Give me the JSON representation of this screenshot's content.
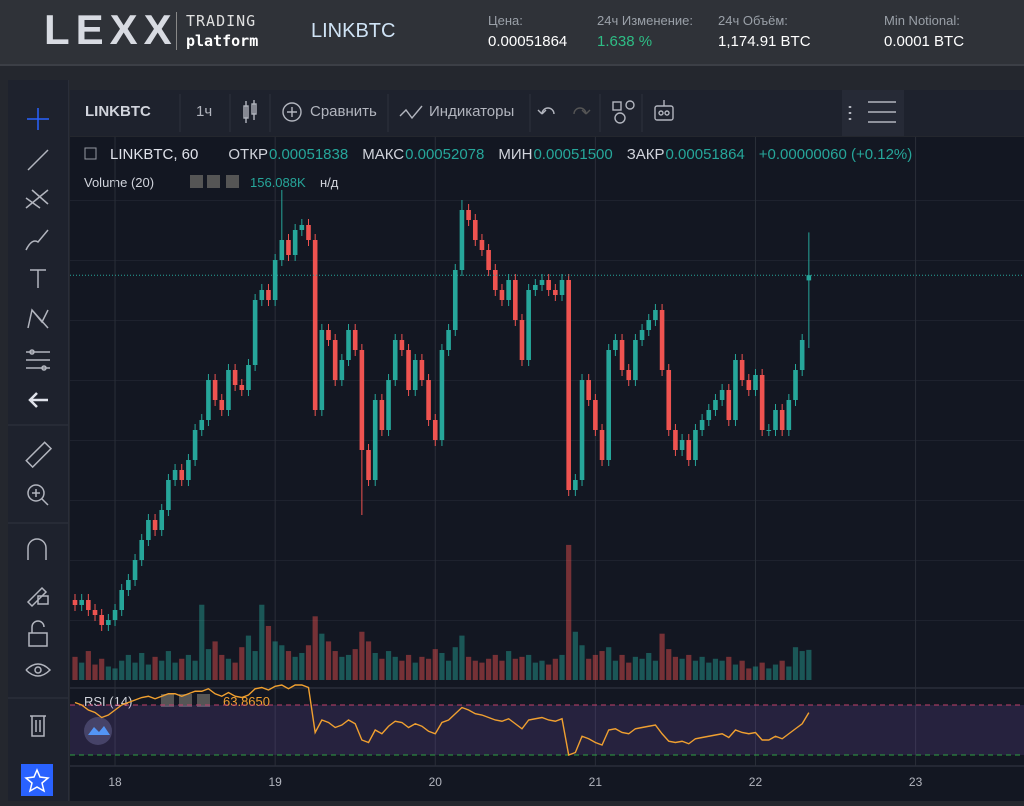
{
  "header": {
    "logo": "LEXX",
    "brand_top": "TRADING",
    "brand_bottom": "platform",
    "symbol": "LINKBTC",
    "stats": [
      {
        "label": "Цена:",
        "value": "0.00051864"
      },
      {
        "label": "24ч Изменение:",
        "value": "1.638 %"
      },
      {
        "label": "24ч Объём:",
        "value": "1,174.91 BTC"
      },
      {
        "label": "Min Notional:",
        "value": "0.0001 BTC"
      }
    ]
  },
  "toolbar": {
    "symbol": "LINKBTC",
    "interval": "1ч",
    "compare": "Сравнить",
    "indicators": "Индикаторы"
  },
  "legend": {
    "symbol": "LINKBTC, 60",
    "open_label": "ОТКР",
    "open": "0.00051838",
    "high_label": "МАКС",
    "high": "0.00052078",
    "low_label": "МИН",
    "low": "0.00051500",
    "close_label": "ЗАКР",
    "close": "0.00051864",
    "change": "+0.00000060 (+0.12%)"
  },
  "chart_data": {
    "type": "candlestick",
    "open": [
      0.0005024,
      0.00050215,
      0.0005024,
      0.0005019,
      0.00050165,
      0.00050115,
      0.0005014,
      0.0005019,
      0.0005029,
      0.0005034,
      0.0005044,
      0.0005054,
      0.0005064,
      0.0005059,
      0.0005069,
      0.0005084,
      0.0005089,
      0.0005084,
      0.0005094,
      0.0005109,
      0.0005114,
      0.0005134,
      0.0005124,
      0.0005119,
      0.0005139,
      0.00051315,
      0.0005129,
      0.00051415,
      0.0005174,
      0.0005179,
      0.0005174,
      0.0005194,
      0.0005204,
      0.00051965,
      0.0005209,
      0.00052115,
      0.0005204,
      0.0005119,
      0.0005159,
      0.0005154,
      0.0005134,
      0.0005144,
      0.0005159,
      0.0005149,
      0.0005099,
      0.0005084,
      0.0005124,
      0.0005109,
      0.0005134,
      0.0005154,
      0.0005149,
      0.0005129,
      0.0005144,
      0.0005134,
      0.0005114,
      0.0005104,
      0.0005149,
      0.0005159,
      0.0005189,
      0.0005219,
      0.0005214,
      0.0005204,
      0.0005199,
      0.0005189,
      0.0005179,
      0.0005174,
      0.0005184,
      0.0005164,
      0.0005144,
      0.0005179,
      0.00051815,
      0.0005184,
      0.0005179,
      0.00051765,
      0.0005184,
      0.0005079,
      0.0005084,
      0.0005134,
      0.0005124,
      0.0005109,
      0.0005094,
      0.0005149,
      0.0005154,
      0.0005139,
      0.0005134,
      0.0005154,
      0.0005159,
      0.0005164,
      0.0005169,
      0.0005139,
      0.0005109,
      0.0005099,
      0.0005104,
      0.0005094,
      0.0005109,
      0.0005114,
      0.0005119,
      0.0005124,
      0.0005129,
      0.0005114,
      0.0005144,
      0.0005134,
      0.0005129,
      0.00051365,
      0.0005109,
      0.0005109,
      0.0005119,
      0.0005109,
      0.0005124,
      0.0005139,
      0.00051838
    ],
    "high": [
      0.0005027,
      0.0005027,
      0.0005027,
      0.0005022,
      0.00050195,
      0.0005017,
      0.0005022,
      0.0005032,
      0.0005037,
      0.0005047,
      0.0005057,
      0.0005067,
      0.0005067,
      0.0005072,
      0.0005087,
      0.0005092,
      0.0005092,
      0.0005097,
      0.0005112,
      0.0005117,
      0.0005137,
      0.0005137,
      0.0005127,
      0.0005142,
      0.0005142,
      0.00051345,
      0.00051445,
      0.0005177,
      0.0005182,
      0.0005182,
      0.0005197,
      0.0005229,
      0.0005207,
      0.0005212,
      0.00052145,
      0.00052145,
      0.0005207,
      0.0005162,
      0.0005162,
      0.0005157,
      0.0005147,
      0.0005162,
      0.0005162,
      0.0005152,
      0.0005102,
      0.0005127,
      0.0005127,
      0.0005137,
      0.0005157,
      0.0005157,
      0.0005152,
      0.0005147,
      0.0005147,
      0.0005137,
      0.0005117,
      0.0005152,
      0.0005162,
      0.0005192,
      0.0005224,
      0.0005222,
      0.0005217,
      0.0005207,
      0.0005202,
      0.0005192,
      0.0005182,
      0.0005187,
      0.0005187,
      0.0005167,
      0.0005182,
      0.00051845,
      0.0005187,
      0.0005187,
      0.0005182,
      0.0005187,
      0.0005187,
      0.0005087,
      0.0005137,
      0.0005137,
      0.0005127,
      0.0005112,
      0.0005152,
      0.0005157,
      0.0005157,
      0.0005142,
      0.0005157,
      0.0005162,
      0.0005167,
      0.0005172,
      0.0005172,
      0.0005142,
      0.0005112,
      0.0005107,
      0.0005107,
      0.0005112,
      0.0005117,
      0.0005122,
      0.0005127,
      0.0005132,
      0.0005132,
      0.0005147,
      0.0005147,
      0.0005137,
      0.00051395,
      0.00051395,
      0.0005112,
      0.0005122,
      0.0005122,
      0.0005127,
      0.0005142,
      0.0005157,
      0.00052078
    ],
    "low": [
      0.00050185,
      0.00050185,
      0.0005016,
      0.00050135,
      0.00050085,
      0.00050085,
      0.0005011,
      0.0005016,
      0.0005026,
      0.0005031,
      0.0005041,
      0.0005051,
      0.0005056,
      0.0005056,
      0.0005066,
      0.0005081,
      0.0005081,
      0.0005081,
      0.0005091,
      0.0005106,
      0.0005111,
      0.0005121,
      0.0005116,
      0.0005116,
      0.00051285,
      0.0005126,
      0.0005126,
      0.00051385,
      0.0005171,
      0.0005171,
      0.0005171,
      0.0005191,
      0.00051935,
      0.00051935,
      0.0005206,
      0.0005201,
      0.0005116,
      0.0005116,
      0.0005151,
      0.0005131,
      0.0005131,
      0.0005141,
      0.0005146,
      0.00050665,
      0.0005081,
      0.0005081,
      0.0005106,
      0.0005106,
      0.0005131,
      0.0005146,
      0.0005126,
      0.0005126,
      0.0005131,
      0.0005111,
      0.0005101,
      0.0005101,
      0.0005146,
      0.0005156,
      0.0005186,
      0.0005211,
      0.0005201,
      0.0005196,
      0.0005186,
      0.0005176,
      0.0005171,
      0.0005171,
      0.0005161,
      0.0005141,
      0.0005141,
      0.0005176,
      0.00051785,
      0.0005176,
      0.00051735,
      0.00051735,
      0.0005076,
      0.0005076,
      0.0005081,
      0.0005121,
      0.0005106,
      0.0005091,
      0.0005091,
      0.0005146,
      0.0005136,
      0.0005131,
      0.0005131,
      0.0005151,
      0.0005156,
      0.0005161,
      0.0005136,
      0.0005106,
      0.0005096,
      0.0005096,
      0.0005091,
      0.0005091,
      0.0005106,
      0.0005111,
      0.0005116,
      0.0005121,
      0.0005111,
      0.0005111,
      0.0005131,
      0.0005126,
      0.0005126,
      0.0005106,
      0.0005106,
      0.0005106,
      0.0005106,
      0.0005106,
      0.0005121,
      0.0005136,
      0.000515
    ],
    "close": [
      0.00050215,
      0.0005024,
      0.0005019,
      0.00050165,
      0.00050115,
      0.0005014,
      0.0005019,
      0.0005029,
      0.0005034,
      0.0005044,
      0.0005054,
      0.0005064,
      0.0005059,
      0.0005069,
      0.0005084,
      0.0005089,
      0.0005084,
      0.0005094,
      0.0005109,
      0.0005114,
      0.0005134,
      0.0005124,
      0.0005119,
      0.0005139,
      0.00051315,
      0.0005129,
      0.00051415,
      0.0005174,
      0.0005179,
      0.0005174,
      0.0005194,
      0.0005204,
      0.00051965,
      0.0005209,
      0.00052115,
      0.0005204,
      0.0005119,
      0.0005159,
      0.0005154,
      0.0005134,
      0.0005144,
      0.0005159,
      0.0005149,
      0.0005099,
      0.0005084,
      0.0005124,
      0.0005109,
      0.0005134,
      0.0005154,
      0.0005149,
      0.0005129,
      0.0005144,
      0.0005134,
      0.0005114,
      0.0005104,
      0.0005149,
      0.0005159,
      0.0005189,
      0.0005219,
      0.0005214,
      0.0005204,
      0.0005199,
      0.0005189,
      0.0005179,
      0.0005174,
      0.0005184,
      0.0005164,
      0.0005144,
      0.0005179,
      0.00051815,
      0.0005184,
      0.0005179,
      0.00051765,
      0.0005184,
      0.0005079,
      0.0005084,
      0.0005134,
      0.0005124,
      0.0005109,
      0.0005094,
      0.0005149,
      0.0005154,
      0.0005139,
      0.0005134,
      0.0005154,
      0.0005159,
      0.0005164,
      0.0005169,
      0.0005139,
      0.0005109,
      0.0005099,
      0.0005104,
      0.0005094,
      0.0005109,
      0.0005114,
      0.0005119,
      0.0005124,
      0.0005129,
      0.0005114,
      0.0005144,
      0.0005134,
      0.0005129,
      0.00051365,
      0.0005109,
      0.0005109,
      0.0005119,
      0.0005109,
      0.0005124,
      0.0005139,
      0.0005154,
      0.00051864
    ],
    "ylim": [
      0.0004984,
      0.0005229
    ],
    "xlim": [
      -0.75,
      142.25
    ],
    "xticks": [
      {
        "value": 6,
        "label": "18"
      },
      {
        "value": 30,
        "label": "19"
      },
      {
        "value": 54,
        "label": "20"
      },
      {
        "value": 78,
        "label": "21"
      },
      {
        "value": 102,
        "label": "22"
      },
      {
        "value": 126,
        "label": "23"
      }
    ],
    "up_color": "#26a69a",
    "down_color": "#ef5350",
    "volume": {
      "name": "Volume (20)",
      "last_label": "156.088K",
      "na": "н/д",
      "ylim": [
        0,
        1000000
      ],
      "values": [
        120000,
        90000,
        150000,
        80000,
        110000,
        70000,
        60000,
        100000,
        130000,
        90000,
        140000,
        80000,
        120000,
        100000,
        150000,
        90000,
        110000,
        130000,
        100000,
        390000,
        160000,
        200000,
        130000,
        110000,
        90000,
        170000,
        230000,
        150000,
        390000,
        280000,
        200000,
        180000,
        150000,
        120000,
        140000,
        180000,
        330000,
        240000,
        200000,
        150000,
        120000,
        130000,
        160000,
        250000,
        200000,
        140000,
        110000,
        150000,
        120000,
        100000,
        130000,
        90000,
        120000,
        110000,
        160000,
        140000,
        100000,
        170000,
        230000,
        120000,
        100000,
        90000,
        110000,
        130000,
        100000,
        150000,
        110000,
        120000,
        130000,
        90000,
        100000,
        80000,
        110000,
        130000,
        700000,
        250000,
        180000,
        110000,
        130000,
        150000,
        170000,
        100000,
        130000,
        90000,
        120000,
        110000,
        140000,
        100000,
        240000,
        160000,
        120000,
        110000,
        130000,
        100000,
        120000,
        90000,
        110000,
        100000,
        120000,
        80000,
        100000,
        60000,
        70000,
        90000,
        60000,
        80000,
        100000,
        70000,
        170000,
        150000,
        156088
      ]
    },
    "rsi": {
      "name": "RSI (14)",
      "last_label": "63.8650",
      "color": "#f0a030",
      "ylim": [
        0,
        100
      ],
      "levels": [
        70,
        30
      ],
      "values": [
        72,
        70,
        66,
        64,
        60,
        62,
        66,
        70,
        72,
        74,
        76,
        77,
        75,
        77,
        79,
        79,
        77,
        79,
        81,
        81,
        83,
        79,
        77,
        80,
        77,
        76,
        78,
        83,
        84,
        82,
        85,
        86,
        83,
        86,
        86,
        84,
        48,
        58,
        56,
        52,
        54,
        58,
        55,
        42,
        40,
        50,
        47,
        53,
        57,
        56,
        52,
        55,
        53,
        49,
        47,
        56,
        58,
        63,
        68,
        66,
        63,
        62,
        60,
        58,
        57,
        59,
        55,
        51,
        58,
        59,
        60,
        58,
        57,
        59,
        30,
        32,
        45,
        43,
        40,
        38,
        50,
        51,
        48,
        47,
        51,
        52,
        53,
        54,
        47,
        41,
        40,
        41,
        39,
        43,
        44,
        45,
        46,
        47,
        44,
        50,
        48,
        47,
        48,
        42,
        42,
        45,
        43,
        47,
        51,
        55,
        63.865
      ]
    }
  }
}
